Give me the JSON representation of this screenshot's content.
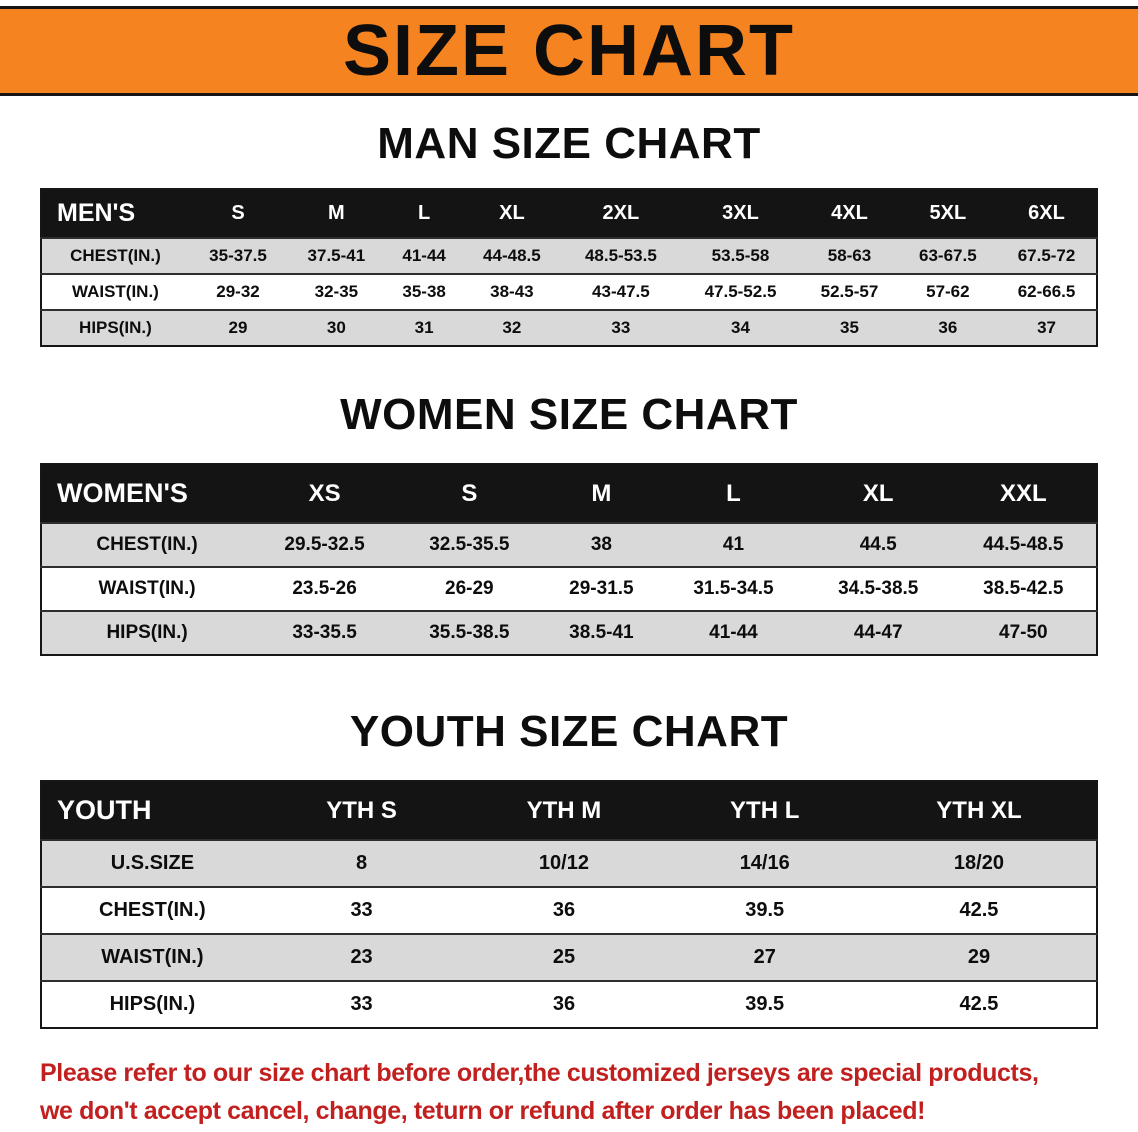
{
  "banner": {
    "title": "SIZE CHART"
  },
  "sections": {
    "men": {
      "heading": "MAN SIZE CHART",
      "table": {
        "header": [
          "MEN'S",
          "S",
          "M",
          "L",
          "XL",
          "2XL",
          "3XL",
          "4XL",
          "5XL",
          "6XL"
        ],
        "rows": [
          [
            "CHEST(IN.)",
            "35-37.5",
            "37.5-41",
            "41-44",
            "44-48.5",
            "48.5-53.5",
            "53.5-58",
            "58-63",
            "63-67.5",
            "67.5-72"
          ],
          [
            "WAIST(IN.)",
            "29-32",
            "32-35",
            "35-38",
            "38-43",
            "43-47.5",
            "47.5-52.5",
            "52.5-57",
            "57-62",
            "62-66.5"
          ],
          [
            "HIPS(IN.)",
            "29",
            "30",
            "31",
            "32",
            "33",
            "34",
            "35",
            "36",
            "37"
          ]
        ]
      }
    },
    "women": {
      "heading": "WOMEN SIZE CHART",
      "table": {
        "header": [
          "WOMEN'S",
          "XS",
          "S",
          "M",
          "L",
          "XL",
          "XXL"
        ],
        "rows": [
          [
            "CHEST(IN.)",
            "29.5-32.5",
            "32.5-35.5",
            "38",
            "41",
            "44.5",
            "44.5-48.5"
          ],
          [
            "WAIST(IN.)",
            "23.5-26",
            "26-29",
            "29-31.5",
            "31.5-34.5",
            "34.5-38.5",
            "38.5-42.5"
          ],
          [
            "HIPS(IN.)",
            "33-35.5",
            "35.5-38.5",
            "38.5-41",
            "41-44",
            "44-47",
            "47-50"
          ]
        ]
      }
    },
    "youth": {
      "heading": "YOUTH SIZE CHART",
      "table": {
        "header": [
          "YOUTH",
          "YTH S",
          "YTH M",
          "YTH L",
          "YTH XL"
        ],
        "rows": [
          [
            "U.S.SIZE",
            "8",
            "10/12",
            "14/16",
            "18/20"
          ],
          [
            "CHEST(IN.)",
            "33",
            "36",
            "39.5",
            "42.5"
          ],
          [
            "WAIST(IN.)",
            "23",
            "25",
            "27",
            "29"
          ],
          [
            "HIPS(IN.)",
            "33",
            "36",
            "39.5",
            "42.5"
          ]
        ]
      }
    }
  },
  "disclaimer": {
    "line1": "Please refer to our size chart before order,the customized jerseys are special products,",
    "line2": "we don't accept cancel, change, teturn or refund after order has been placed!"
  },
  "colors": {
    "banner_bg": "#f5831f",
    "table_header_bg": "#141414",
    "row_alt_bg": "#d9d9d9",
    "disclaimer_text": "#c21f1f",
    "ink": "#0d0d0d"
  }
}
